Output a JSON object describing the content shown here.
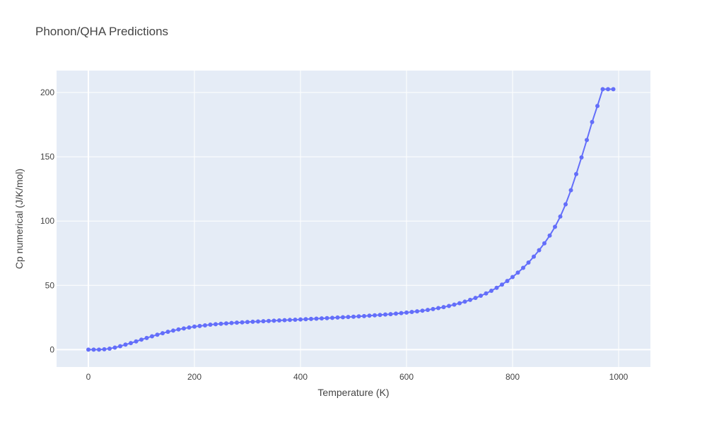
{
  "chart_data": {
    "type": "line",
    "title": "Phonon/QHA Predictions",
    "xlabel": "Temperature (K)",
    "ylabel": "Cp numerical (J/K/mol)",
    "xlim": [
      -60,
      1060
    ],
    "ylim": [
      -13.5,
      217
    ],
    "xticks": [
      0,
      200,
      400,
      600,
      800,
      1000
    ],
    "yticks": [
      0,
      50,
      100,
      150,
      200
    ],
    "grid": true,
    "colors": {
      "plot_bg": "#e5ecf6",
      "line": "#636efa",
      "grid": "#ffffff"
    },
    "series": [
      {
        "name": "",
        "mode": "lines+markers",
        "x": [
          0,
          10,
          20,
          30,
          40,
          50,
          60,
          70,
          80,
          90,
          100,
          110,
          120,
          130,
          140,
          150,
          160,
          170,
          180,
          190,
          200,
          210,
          220,
          230,
          240,
          250,
          260,
          270,
          280,
          290,
          300,
          310,
          320,
          330,
          340,
          350,
          360,
          370,
          380,
          390,
          400,
          410,
          420,
          430,
          440,
          450,
          460,
          470,
          480,
          490,
          500,
          510,
          520,
          530,
          540,
          550,
          560,
          570,
          580,
          590,
          600,
          610,
          620,
          630,
          640,
          650,
          660,
          670,
          680,
          690,
          700,
          710,
          720,
          730,
          740,
          750,
          760,
          770,
          780,
          790,
          800,
          810,
          820,
          830,
          840,
          850,
          860,
          870,
          880,
          890,
          900,
          910,
          920,
          930,
          940,
          950,
          960,
          970,
          980,
          990
        ],
        "y": [
          0,
          0,
          0,
          0.3,
          0.8,
          1.6,
          2.7,
          3.9,
          5.1,
          6.4,
          7.8,
          9.1,
          10.4,
          11.6,
          12.8,
          13.9,
          14.8,
          15.7,
          16.5,
          17.2,
          17.9,
          18.4,
          18.9,
          19.4,
          19.8,
          20.1,
          20.4,
          20.7,
          21.0,
          21.2,
          21.5,
          21.7,
          21.9,
          22.1,
          22.3,
          22.5,
          22.7,
          22.9,
          23.1,
          23.3,
          23.5,
          23.7,
          23.9,
          24.1,
          24.3,
          24.5,
          24.7,
          25.0,
          25.2,
          25.4,
          25.6,
          25.9,
          26.1,
          26.4,
          26.7,
          27.0,
          27.3,
          27.6,
          28.0,
          28.4,
          28.8,
          29.3,
          29.8,
          30.3,
          30.9,
          31.6,
          32.3,
          33.1,
          34.0,
          35.0,
          36.1,
          37.3,
          38.7,
          40.2,
          41.9,
          43.7,
          45.8,
          48.1,
          50.6,
          53.4,
          56.5,
          59.9,
          63.6,
          67.7,
          72.3,
          77.3,
          82.7,
          88.7,
          95.5,
          103.5,
          113.0,
          124.0,
          136.5,
          149.5,
          163.0,
          177.0,
          189.5,
          202.5,
          202.5,
          202.5
        ]
      }
    ]
  }
}
